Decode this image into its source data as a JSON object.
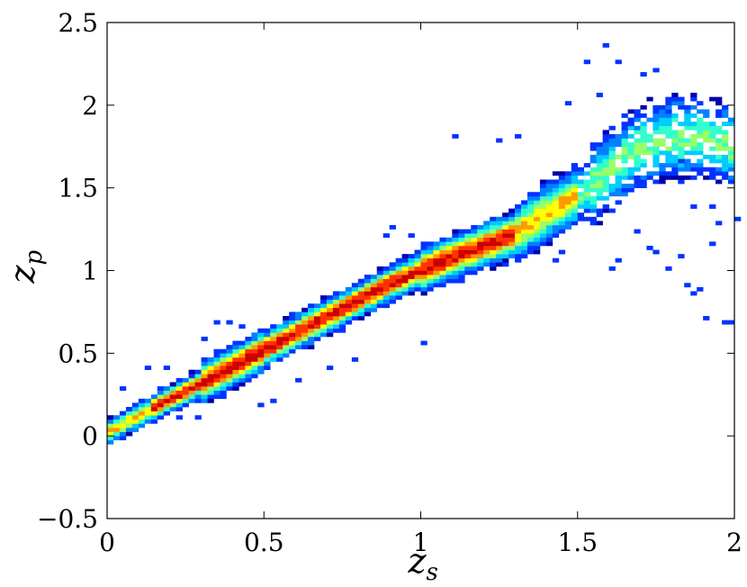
{
  "chart_data": {
    "type": "heatmap",
    "title": "",
    "xlabel": "z",
    "xlabel_sub": "s",
    "ylabel": "z",
    "ylabel_sub": "p",
    "xlim": [
      0,
      2
    ],
    "ylim": [
      -0.5,
      2.5
    ],
    "xticks": [
      0,
      0.5,
      1,
      1.5,
      2
    ],
    "yticks": [
      -0.5,
      0,
      0.5,
      1,
      1.5,
      2,
      2.5
    ],
    "xtick_labels": [
      "0",
      "0.5",
      "1",
      "1.5",
      "2"
    ],
    "ytick_labels": [
      "−0.5",
      "0",
      "0.5",
      "1",
      "1.5",
      "2",
      "2.5"
    ],
    "grid": false,
    "legend": "none",
    "colormap": "jet",
    "bin_size": {
      "x": 0.02,
      "y": 0.025
    },
    "density_description": "2D histogram of photometric vs spectroscopic redshift; dense ridge along z_p = z_s with broadening above z_s 1.3",
    "ridge": [
      [
        0.0,
        0.02
      ],
      [
        0.1,
        0.12
      ],
      [
        0.2,
        0.22
      ],
      [
        0.3,
        0.32
      ],
      [
        0.4,
        0.42
      ],
      [
        0.5,
        0.52
      ],
      [
        0.6,
        0.62
      ],
      [
        0.7,
        0.72
      ],
      [
        0.8,
        0.82
      ],
      [
        0.9,
        0.92
      ],
      [
        1.0,
        1.0
      ],
      [
        1.1,
        1.08
      ],
      [
        1.2,
        1.15
      ],
      [
        1.3,
        1.22
      ],
      [
        1.4,
        1.35
      ],
      [
        1.5,
        1.45
      ],
      [
        1.6,
        1.6
      ],
      [
        1.7,
        1.75
      ],
      [
        1.8,
        1.8
      ],
      [
        1.9,
        1.8
      ],
      [
        2.0,
        1.75
      ]
    ],
    "outliers": [
      [
        1.58,
        2.37
      ],
      [
        1.53,
        2.26
      ],
      [
        1.62,
        2.25
      ],
      [
        1.74,
        2.22
      ],
      [
        1.7,
        2.18
      ],
      [
        1.56,
        2.07
      ],
      [
        1.46,
        2.0
      ],
      [
        1.11,
        1.8
      ],
      [
        1.24,
        1.78
      ],
      [
        1.31,
        1.8
      ],
      [
        1.82,
        1.66
      ],
      [
        1.85,
        0.9
      ],
      [
        1.87,
        0.85
      ],
      [
        1.89,
        0.88
      ],
      [
        1.9,
        0.72
      ],
      [
        1.96,
        0.69
      ],
      [
        1.99,
        0.68
      ],
      [
        0.9,
        1.25
      ],
      [
        0.88,
        1.22
      ],
      [
        0.96,
        1.21
      ],
      [
        0.3,
        0.6
      ],
      [
        0.35,
        0.7
      ],
      [
        0.38,
        0.68
      ],
      [
        0.42,
        0.65
      ],
      [
        0.12,
        0.4
      ],
      [
        0.18,
        0.4
      ],
      [
        0.05,
        0.3
      ],
      [
        0.22,
        0.12
      ],
      [
        0.28,
        0.1
      ],
      [
        0.48,
        0.18
      ],
      [
        0.52,
        0.2
      ],
      [
        0.6,
        0.35
      ],
      [
        0.7,
        0.4
      ],
      [
        0.78,
        0.45
      ],
      [
        1.0,
        0.55
      ],
      [
        1.6,
        1.0
      ],
      [
        1.62,
        1.05
      ],
      [
        1.75,
        1.12
      ],
      [
        1.79,
        1.0
      ],
      [
        1.82,
        1.08
      ],
      [
        1.93,
        1.17
      ],
      [
        1.95,
        1.28
      ],
      [
        2.0,
        1.3
      ],
      [
        1.68,
        1.23
      ],
      [
        1.72,
        1.13
      ],
      [
        1.88,
        1.4
      ],
      [
        1.92,
        1.4
      ],
      [
        1.42,
        1.05
      ],
      [
        1.45,
        1.12
      ],
      [
        1.31,
        1.08
      ]
    ]
  },
  "palette": [
    "#0000a8",
    "#0033ff",
    "#0080ff",
    "#00ccff",
    "#33ffcc",
    "#99ff66",
    "#ffff00",
    "#ff9900",
    "#ff3300",
    "#cc0000"
  ]
}
